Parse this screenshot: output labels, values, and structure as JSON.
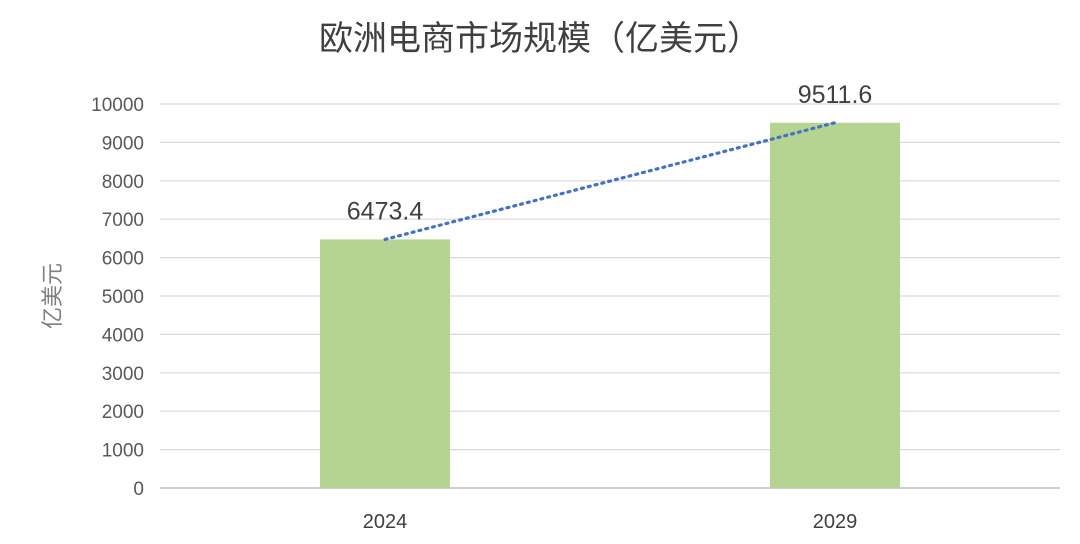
{
  "chart_data": {
    "type": "bar",
    "title": "欧洲电商市场规模（亿美元）",
    "ylabel": "亿美元",
    "xlabel": "",
    "categories": [
      "2024",
      "2029"
    ],
    "values": [
      6473.4,
      9511.6
    ],
    "data_labels": [
      "6473.4",
      "9511.6"
    ],
    "ylim": [
      0,
      10000
    ],
    "yticks": [
      0,
      1000,
      2000,
      3000,
      4000,
      5000,
      6000,
      7000,
      8000,
      9000,
      10000
    ],
    "grid": true,
    "trendline": "linear-dotted",
    "colors": {
      "bar": "#b5d492",
      "trendline": "#4472c4"
    }
  }
}
